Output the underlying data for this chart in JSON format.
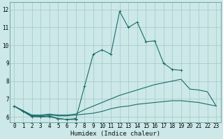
{
  "xlabel": "Humidex (Indice chaleur)",
  "background_color": "#cce8e8",
  "grid_color": "#aacccc",
  "line_color": "#1a6b6b",
  "xlim": [
    -0.5,
    23.5
  ],
  "ylim": [
    5.7,
    12.4
  ],
  "yticks": [
    6,
    7,
    8,
    9,
    10,
    11,
    12
  ],
  "xticks": [
    0,
    1,
    2,
    3,
    4,
    5,
    6,
    7,
    8,
    9,
    10,
    11,
    12,
    13,
    14,
    15,
    16,
    17,
    18,
    19,
    20,
    21,
    22,
    23
  ],
  "xlabel_fontsize": 6.5,
  "tick_fontsize": 5.5,
  "lines": [
    {
      "x": [
        0,
        1,
        2,
        3,
        4,
        5,
        6,
        7,
        8,
        9,
        10,
        11,
        12,
        13,
        14,
        15,
        16,
        17,
        18,
        19
      ],
      "y": [
        6.6,
        6.3,
        6.0,
        6.0,
        6.05,
        5.9,
        5.85,
        5.85,
        7.7,
        9.5,
        9.75,
        9.5,
        11.9,
        11.0,
        11.3,
        10.2,
        10.25,
        9.0,
        8.65,
        8.6
      ],
      "has_markers": true
    },
    {
      "x": [
        0,
        1,
        2,
        3,
        4,
        5,
        6,
        7
      ],
      "y": [
        6.6,
        6.3,
        6.05,
        6.0,
        6.0,
        5.9,
        5.85,
        5.9
      ],
      "has_markers": true
    },
    {
      "x": [
        0,
        2,
        3,
        4,
        5,
        6,
        7,
        8,
        9,
        10,
        11,
        12,
        13,
        14,
        15,
        16,
        17,
        18,
        19,
        20,
        21,
        22,
        23
      ],
      "y": [
        6.6,
        6.1,
        6.1,
        6.15,
        6.1,
        6.1,
        6.15,
        6.4,
        6.6,
        6.8,
        7.0,
        7.2,
        7.35,
        7.5,
        7.65,
        7.8,
        7.9,
        8.0,
        8.1,
        7.55,
        7.5,
        7.4,
        6.6
      ],
      "has_markers": false
    },
    {
      "x": [
        0,
        2,
        3,
        4,
        5,
        6,
        7,
        8,
        9,
        10,
        11,
        12,
        13,
        14,
        15,
        16,
        17,
        18,
        19,
        20,
        21,
        22,
        23
      ],
      "y": [
        6.6,
        6.05,
        6.05,
        6.1,
        6.05,
        6.05,
        6.1,
        6.15,
        6.2,
        6.3,
        6.45,
        6.55,
        6.6,
        6.7,
        6.75,
        6.8,
        6.85,
        6.9,
        6.9,
        6.85,
        6.8,
        6.7,
        6.6
      ],
      "has_markers": false
    }
  ]
}
